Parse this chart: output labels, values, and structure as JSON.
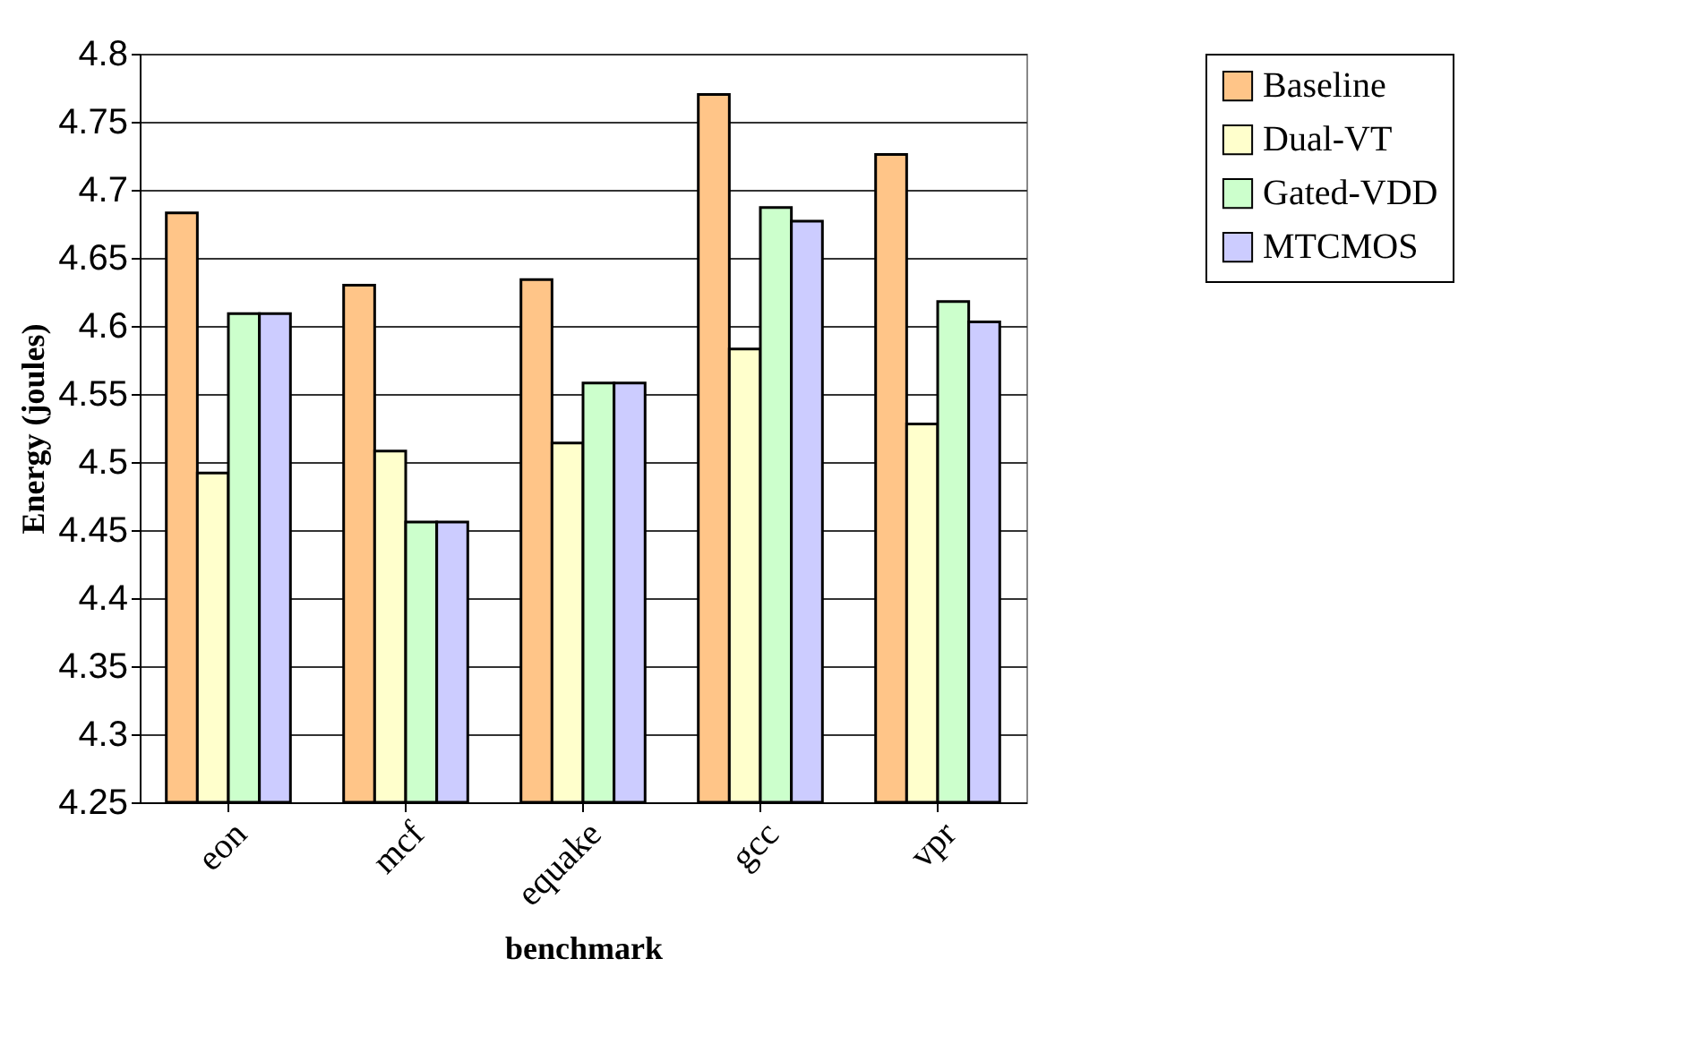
{
  "chart_data": {
    "type": "bar",
    "xlabel": "benchmark",
    "ylabel": "Energy (joules)",
    "categories": [
      "eon",
      "mcf",
      "equake",
      "gcc",
      "vpr"
    ],
    "series": [
      {
        "name": "Baseline",
        "color": "#ffc588",
        "values": [
          4.683,
          4.63,
          4.634,
          4.77,
          4.726
        ]
      },
      {
        "name": "Dual-VT",
        "color": "#ffffcc",
        "values": [
          4.492,
          4.508,
          4.514,
          4.583,
          4.528
        ]
      },
      {
        "name": "Gated-VDD",
        "color": "#ccffcc",
        "values": [
          4.609,
          4.456,
          4.558,
          4.687,
          4.618
        ]
      },
      {
        "name": "MTCMOS",
        "color": "#ccccff",
        "values": [
          4.609,
          4.456,
          4.558,
          4.677,
          4.603
        ]
      }
    ],
    "ylim": [
      4.25,
      4.8
    ],
    "yticks": [
      4.25,
      4.3,
      4.35,
      4.4,
      4.45,
      4.5,
      4.55,
      4.6,
      4.65,
      4.7,
      4.75,
      4.8
    ],
    "grid": "y",
    "legend": "right"
  }
}
